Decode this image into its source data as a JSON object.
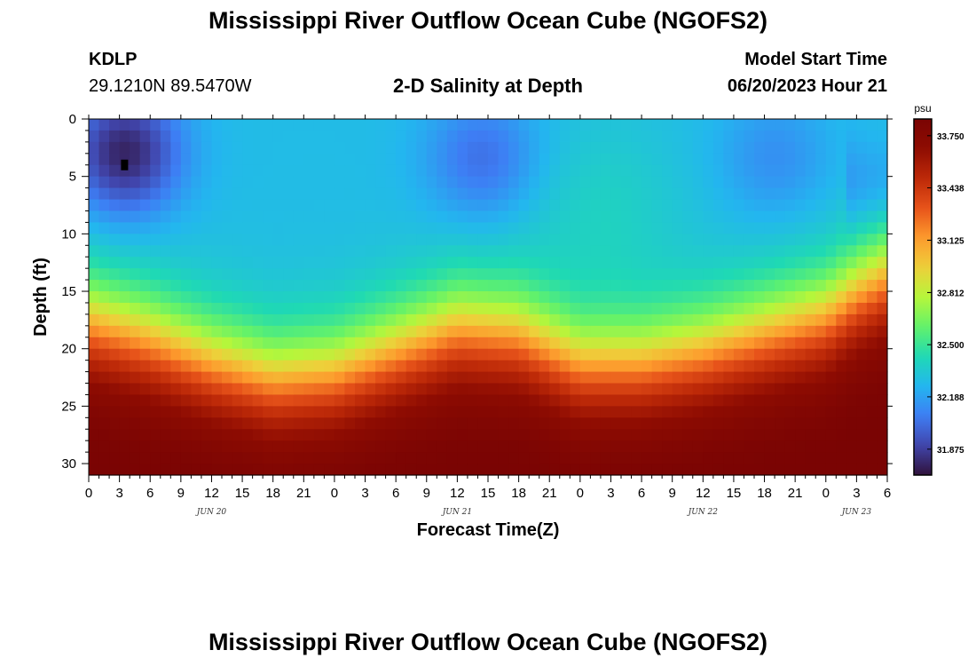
{
  "header": {
    "title": "Mississippi River Outflow Ocean Cube (NGOFS2)",
    "station_id": "KDLP",
    "station_coords": "29.1210N  89.5470W",
    "subtitle": "2-D Salinity at Depth",
    "model_start_label": "Model Start Time",
    "model_start_value": "06/20/2023 Hour 21"
  },
  "footer": {
    "title": "Mississippi River Outflow Ocean Cube (NGOFS2)"
  },
  "colors": {
    "scale": [
      "#30123b",
      "#4145ab",
      "#3e7df4",
      "#23b6ef",
      "#1fd9b4",
      "#63f26a",
      "#b6f63b",
      "#eecf3a",
      "#fd9a2d",
      "#e7531a",
      "#bd2908",
      "#8e0c02",
      "#7a0403"
    ],
    "marker": "#000000"
  },
  "chart_data": {
    "type": "heatmap",
    "xlabel": "Forecast Time(Z)",
    "ylabel": "Depth (ft)",
    "x_tick_labels": [
      "0",
      "3",
      "6",
      "9",
      "12",
      "15",
      "18",
      "21",
      "0",
      "3",
      "6",
      "9",
      "12",
      "15",
      "18",
      "21",
      "0",
      "3",
      "6",
      "9",
      "12",
      "15",
      "18",
      "21",
      "0",
      "3",
      "6"
    ],
    "x_range_hours": [
      0,
      78
    ],
    "date_labels": [
      {
        "text": "JUN 20",
        "hour": 12
      },
      {
        "text": "JUN 21",
        "hour": 36
      },
      {
        "text": "JUN 22",
        "hour": 60
      },
      {
        "text": "JUN 23",
        "hour": 75
      }
    ],
    "y_tick_labels": [
      "0",
      "5",
      "10",
      "15",
      "20",
      "25",
      "30"
    ],
    "y_range_ft": [
      0,
      31
    ],
    "colorbar": {
      "unit": "psu",
      "min": 31.72,
      "max": 33.85,
      "ticks": [
        "33.750",
        "33.438",
        "33.125",
        "32.812",
        "32.500",
        "32.188",
        "31.875"
      ]
    },
    "interface_depth_ft": {
      "hours": [
        0,
        6,
        12,
        18,
        24,
        30,
        36,
        42,
        48,
        54,
        60,
        66,
        72,
        75,
        78
      ],
      "values": [
        17.5,
        19.0,
        21.0,
        22.5,
        22.0,
        20.0,
        18.0,
        18.5,
        21.0,
        21.0,
        20.0,
        18.5,
        17.0,
        15.0,
        13.5
      ]
    },
    "surface_minima": [
      {
        "hour": 3.5,
        "depth_ft": 3.0,
        "salinity": 31.78
      },
      {
        "hour": 38.5,
        "depth_ft": 3.5,
        "salinity": 32.03
      },
      {
        "hour": 67,
        "depth_ft": 3.5,
        "salinity": 32.13
      }
    ],
    "surface_mean_salinity": 32.28,
    "bottom_max_salinity": 33.82,
    "marker": {
      "hour": 3.5,
      "depth_ft": 4
    }
  }
}
